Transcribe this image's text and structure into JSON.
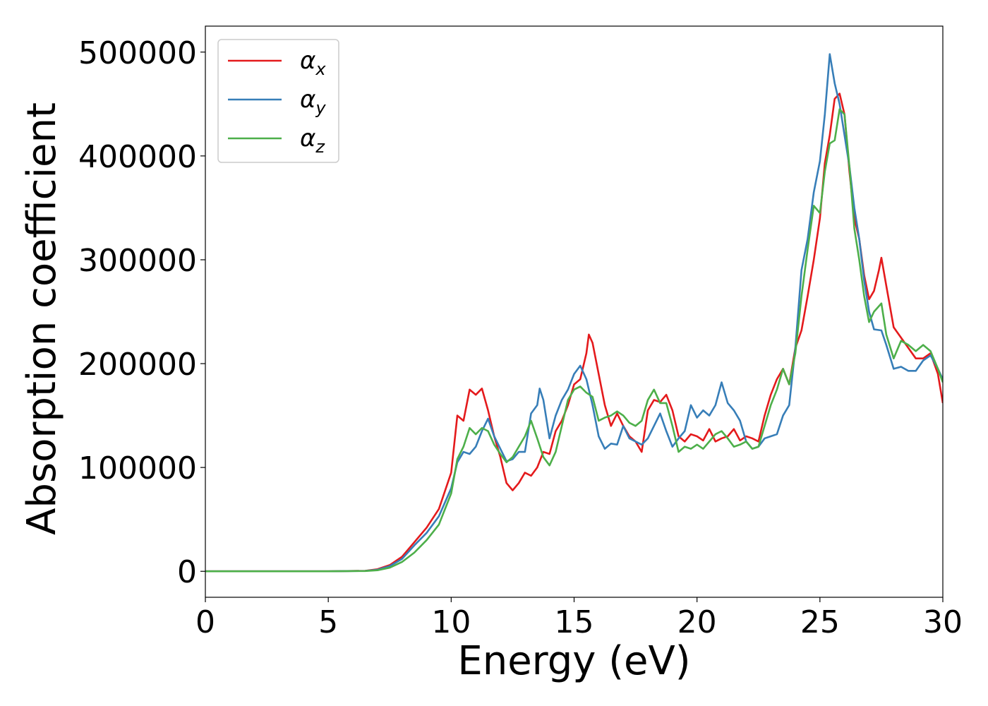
{
  "chart_data": {
    "type": "line",
    "title": "",
    "xlabel": "Energy (eV)",
    "ylabel": "Absorption coefficient",
    "xlim": [
      0,
      30
    ],
    "ylim": [
      -25000,
      525000
    ],
    "xticks": [
      0,
      5,
      10,
      15,
      20,
      25,
      30
    ],
    "yticks": [
      0,
      100000,
      200000,
      300000,
      400000,
      500000
    ],
    "grid": false,
    "legend": {
      "position": "top-left",
      "entries": [
        {
          "symbol": "α",
          "subscript": "x"
        },
        {
          "symbol": "α",
          "subscript": "y"
        },
        {
          "symbol": "α",
          "subscript": "z"
        }
      ]
    },
    "series": [
      {
        "color": "#e41a1c",
        "points": [
          [
            0,
            0
          ],
          [
            5,
            0
          ],
          [
            6.5,
            500
          ],
          [
            7,
            2000
          ],
          [
            7.5,
            6000
          ],
          [
            8,
            14000
          ],
          [
            8.5,
            28000
          ],
          [
            9,
            42000
          ],
          [
            9.5,
            60000
          ],
          [
            10,
            95000
          ],
          [
            10.25,
            150000
          ],
          [
            10.5,
            145000
          ],
          [
            10.75,
            175000
          ],
          [
            11,
            170000
          ],
          [
            11.25,
            176000
          ],
          [
            11.5,
            155000
          ],
          [
            11.75,
            130000
          ],
          [
            12,
            110000
          ],
          [
            12.25,
            85000
          ],
          [
            12.5,
            78000
          ],
          [
            12.75,
            85000
          ],
          [
            13,
            95000
          ],
          [
            13.25,
            92000
          ],
          [
            13.5,
            100000
          ],
          [
            13.75,
            115000
          ],
          [
            14,
            113000
          ],
          [
            14.25,
            135000
          ],
          [
            14.5,
            145000
          ],
          [
            14.75,
            160000
          ],
          [
            15,
            180000
          ],
          [
            15.25,
            185000
          ],
          [
            15.5,
            210000
          ],
          [
            15.6,
            228000
          ],
          [
            15.75,
            220000
          ],
          [
            16,
            190000
          ],
          [
            16.25,
            160000
          ],
          [
            16.5,
            140000
          ],
          [
            16.75,
            152000
          ],
          [
            17,
            140000
          ],
          [
            17.25,
            130000
          ],
          [
            17.5,
            125000
          ],
          [
            17.75,
            115000
          ],
          [
            18,
            155000
          ],
          [
            18.25,
            165000
          ],
          [
            18.5,
            163000
          ],
          [
            18.75,
            170000
          ],
          [
            19,
            155000
          ],
          [
            19.25,
            130000
          ],
          [
            19.5,
            125000
          ],
          [
            19.75,
            132000
          ],
          [
            20,
            130000
          ],
          [
            20.25,
            126000
          ],
          [
            20.5,
            137000
          ],
          [
            20.75,
            125000
          ],
          [
            21,
            128000
          ],
          [
            21.25,
            130000
          ],
          [
            21.5,
            137000
          ],
          [
            21.75,
            126000
          ],
          [
            22,
            130000
          ],
          [
            22.25,
            128000
          ],
          [
            22.5,
            125000
          ],
          [
            22.75,
            150000
          ],
          [
            23,
            170000
          ],
          [
            23.25,
            185000
          ],
          [
            23.5,
            195000
          ],
          [
            23.75,
            180000
          ],
          [
            24,
            215000
          ],
          [
            24.25,
            232000
          ],
          [
            24.5,
            265000
          ],
          [
            24.75,
            300000
          ],
          [
            25,
            340000
          ],
          [
            25.2,
            393000
          ],
          [
            25.4,
            420000
          ],
          [
            25.6,
            455000
          ],
          [
            25.8,
            460000
          ],
          [
            26,
            440000
          ],
          [
            26.2,
            385000
          ],
          [
            26.4,
            340000
          ],
          [
            26.6,
            320000
          ],
          [
            26.8,
            285000
          ],
          [
            27,
            262000
          ],
          [
            27.2,
            270000
          ],
          [
            27.4,
            290000
          ],
          [
            27.5,
            302000
          ],
          [
            27.7,
            275000
          ],
          [
            28,
            235000
          ],
          [
            28.3,
            225000
          ],
          [
            28.6,
            215000
          ],
          [
            28.9,
            205000
          ],
          [
            29.2,
            205000
          ],
          [
            29.5,
            210000
          ],
          [
            29.8,
            190000
          ],
          [
            30,
            162000
          ]
        ]
      },
      {
        "color": "#377eb8",
        "points": [
          [
            0,
            0
          ],
          [
            5,
            0
          ],
          [
            6.5,
            400
          ],
          [
            7,
            1500
          ],
          [
            7.5,
            5000
          ],
          [
            8,
            12000
          ],
          [
            8.5,
            25000
          ],
          [
            9,
            37000
          ],
          [
            9.5,
            53000
          ],
          [
            10,
            80000
          ],
          [
            10.25,
            105000
          ],
          [
            10.5,
            115000
          ],
          [
            10.75,
            113000
          ],
          [
            11,
            120000
          ],
          [
            11.25,
            135000
          ],
          [
            11.5,
            147000
          ],
          [
            11.75,
            130000
          ],
          [
            12,
            118000
          ],
          [
            12.25,
            106000
          ],
          [
            12.5,
            108000
          ],
          [
            12.75,
            115000
          ],
          [
            13,
            115000
          ],
          [
            13.25,
            152000
          ],
          [
            13.5,
            160000
          ],
          [
            13.6,
            176000
          ],
          [
            13.75,
            165000
          ],
          [
            14,
            128000
          ],
          [
            14.25,
            150000
          ],
          [
            14.5,
            165000
          ],
          [
            14.75,
            175000
          ],
          [
            15,
            190000
          ],
          [
            15.25,
            198000
          ],
          [
            15.5,
            185000
          ],
          [
            15.75,
            160000
          ],
          [
            16,
            130000
          ],
          [
            16.25,
            118000
          ],
          [
            16.5,
            123000
          ],
          [
            16.75,
            122000
          ],
          [
            17,
            140000
          ],
          [
            17.25,
            128000
          ],
          [
            17.5,
            125000
          ],
          [
            17.75,
            122000
          ],
          [
            18,
            128000
          ],
          [
            18.25,
            140000
          ],
          [
            18.5,
            152000
          ],
          [
            18.75,
            135000
          ],
          [
            19,
            120000
          ],
          [
            19.25,
            128000
          ],
          [
            19.5,
            135000
          ],
          [
            19.75,
            160000
          ],
          [
            20,
            148000
          ],
          [
            20.25,
            155000
          ],
          [
            20.5,
            150000
          ],
          [
            20.75,
            160000
          ],
          [
            21,
            182000
          ],
          [
            21.25,
            162000
          ],
          [
            21.5,
            155000
          ],
          [
            21.75,
            145000
          ],
          [
            22,
            125000
          ],
          [
            22.25,
            118000
          ],
          [
            22.5,
            120000
          ],
          [
            22.75,
            128000
          ],
          [
            23,
            130000
          ],
          [
            23.25,
            132000
          ],
          [
            23.5,
            150000
          ],
          [
            23.75,
            160000
          ],
          [
            24,
            215000
          ],
          [
            24.25,
            290000
          ],
          [
            24.5,
            320000
          ],
          [
            24.75,
            365000
          ],
          [
            25,
            395000
          ],
          [
            25.2,
            440000
          ],
          [
            25.4,
            498000
          ],
          [
            25.6,
            470000
          ],
          [
            25.8,
            450000
          ],
          [
            26,
            420000
          ],
          [
            26.2,
            390000
          ],
          [
            26.4,
            350000
          ],
          [
            26.6,
            320000
          ],
          [
            26.8,
            280000
          ],
          [
            27,
            250000
          ],
          [
            27.2,
            233000
          ],
          [
            27.5,
            232000
          ],
          [
            27.7,
            218000
          ],
          [
            28,
            195000
          ],
          [
            28.3,
            197000
          ],
          [
            28.6,
            193000
          ],
          [
            28.9,
            193000
          ],
          [
            29.2,
            203000
          ],
          [
            29.5,
            208000
          ],
          [
            29.8,
            195000
          ],
          [
            30,
            185000
          ]
        ]
      },
      {
        "color": "#4daf4a",
        "points": [
          [
            0,
            0
          ],
          [
            5,
            0
          ],
          [
            6.5,
            300
          ],
          [
            7,
            1000
          ],
          [
            7.5,
            3500
          ],
          [
            8,
            9000
          ],
          [
            8.5,
            18000
          ],
          [
            9,
            30000
          ],
          [
            9.5,
            45000
          ],
          [
            10,
            75000
          ],
          [
            10.25,
            108000
          ],
          [
            10.5,
            120000
          ],
          [
            10.75,
            138000
          ],
          [
            11,
            132000
          ],
          [
            11.25,
            138000
          ],
          [
            11.5,
            135000
          ],
          [
            11.75,
            122000
          ],
          [
            12,
            113000
          ],
          [
            12.25,
            105000
          ],
          [
            12.5,
            110000
          ],
          [
            12.75,
            120000
          ],
          [
            13,
            130000
          ],
          [
            13.25,
            145000
          ],
          [
            13.5,
            128000
          ],
          [
            13.75,
            110000
          ],
          [
            14,
            102000
          ],
          [
            14.25,
            115000
          ],
          [
            14.5,
            140000
          ],
          [
            14.75,
            165000
          ],
          [
            15,
            175000
          ],
          [
            15.25,
            178000
          ],
          [
            15.5,
            172000
          ],
          [
            15.75,
            168000
          ],
          [
            16,
            145000
          ],
          [
            16.25,
            148000
          ],
          [
            16.5,
            150000
          ],
          [
            16.75,
            154000
          ],
          [
            17,
            150000
          ],
          [
            17.25,
            143000
          ],
          [
            17.5,
            140000
          ],
          [
            17.75,
            145000
          ],
          [
            18,
            165000
          ],
          [
            18.25,
            175000
          ],
          [
            18.5,
            162000
          ],
          [
            18.75,
            162000
          ],
          [
            19,
            140000
          ],
          [
            19.25,
            115000
          ],
          [
            19.5,
            120000
          ],
          [
            19.75,
            118000
          ],
          [
            20,
            122000
          ],
          [
            20.25,
            118000
          ],
          [
            20.5,
            125000
          ],
          [
            20.75,
            132000
          ],
          [
            21,
            135000
          ],
          [
            21.25,
            128000
          ],
          [
            21.5,
            120000
          ],
          [
            21.75,
            122000
          ],
          [
            22,
            125000
          ],
          [
            22.25,
            118000
          ],
          [
            22.5,
            120000
          ],
          [
            22.75,
            140000
          ],
          [
            23,
            160000
          ],
          [
            23.25,
            175000
          ],
          [
            23.5,
            195000
          ],
          [
            23.75,
            180000
          ],
          [
            24,
            210000
          ],
          [
            24.25,
            265000
          ],
          [
            24.5,
            310000
          ],
          [
            24.75,
            352000
          ],
          [
            25,
            345000
          ],
          [
            25.2,
            385000
          ],
          [
            25.4,
            412000
          ],
          [
            25.6,
            415000
          ],
          [
            25.8,
            445000
          ],
          [
            26,
            440000
          ],
          [
            26.2,
            390000
          ],
          [
            26.4,
            330000
          ],
          [
            26.6,
            300000
          ],
          [
            26.8,
            265000
          ],
          [
            27,
            240000
          ],
          [
            27.2,
            250000
          ],
          [
            27.5,
            258000
          ],
          [
            27.7,
            228000
          ],
          [
            28,
            205000
          ],
          [
            28.3,
            222000
          ],
          [
            28.6,
            218000
          ],
          [
            28.9,
            212000
          ],
          [
            29.2,
            218000
          ],
          [
            29.5,
            212000
          ],
          [
            29.8,
            195000
          ],
          [
            30,
            182000
          ]
        ]
      }
    ]
  }
}
